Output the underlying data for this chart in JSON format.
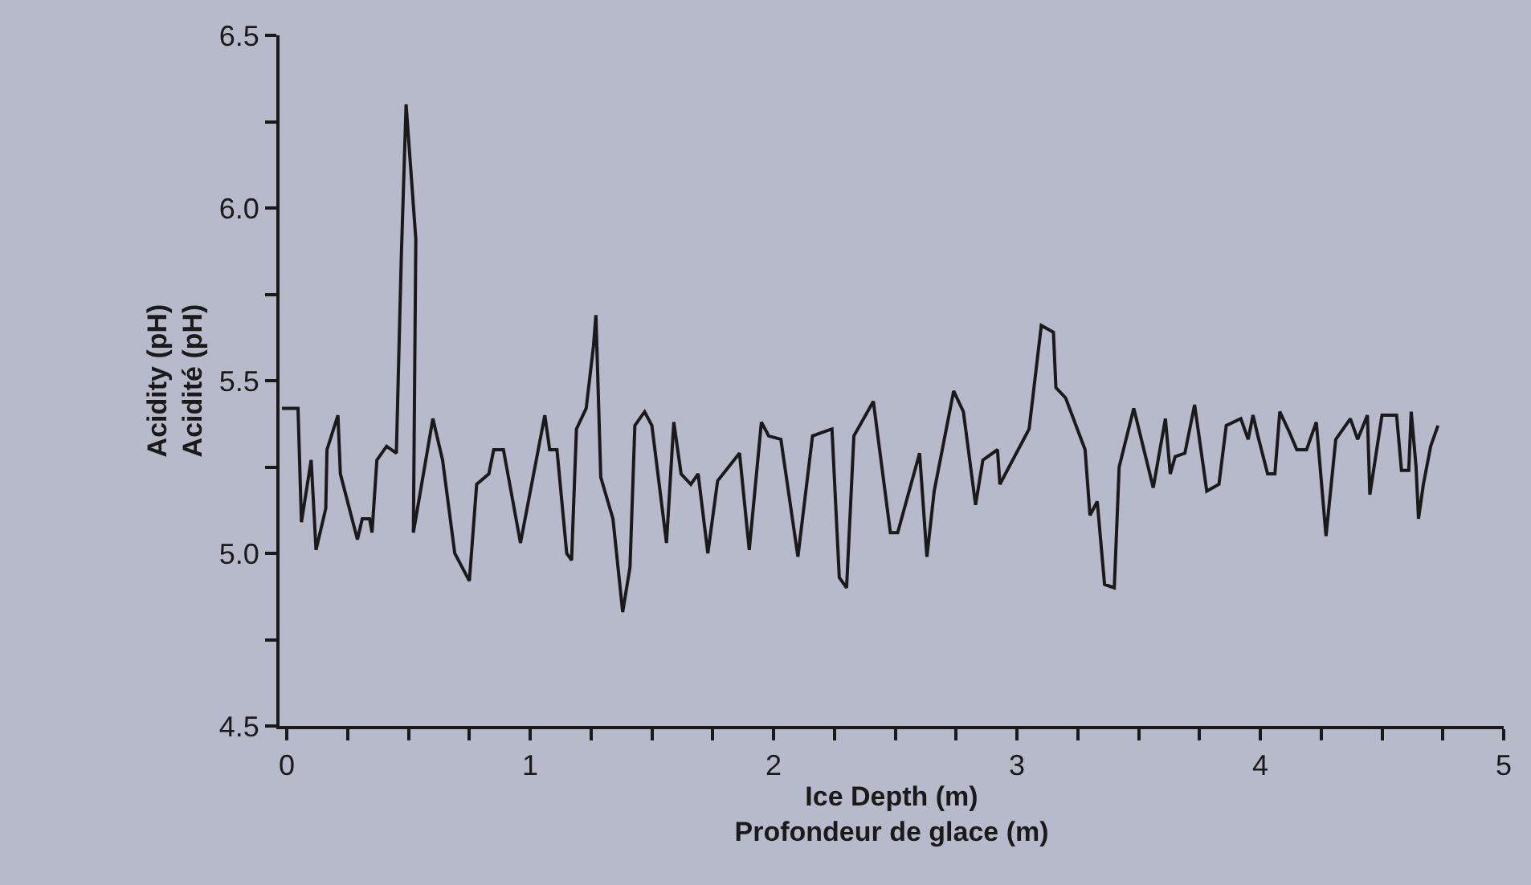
{
  "chart_data": {
    "type": "line",
    "xlabel": "Ice Depth (m)\nProfondeur de glace (m)",
    "ylabel": "Acidity (pH)\nAcidité (pH)",
    "xlim": [
      -0.03,
      5
    ],
    "ylim": [
      4.5,
      6.5
    ],
    "xticks": [
      0,
      {
        "value": 0.25,
        "label": null
      },
      {
        "value": 0.5,
        "label": null
      },
      {
        "value": 0.75,
        "label": null
      },
      1,
      {
        "value": 1.25,
        "label": null
      },
      {
        "value": 1.5,
        "label": null
      },
      {
        "value": 1.75,
        "label": null
      },
      2,
      {
        "value": 2.25,
        "label": null
      },
      {
        "value": 2.5,
        "label": null
      },
      {
        "value": 2.75,
        "label": null
      },
      3,
      {
        "value": 3.25,
        "label": null
      },
      {
        "value": 3.5,
        "label": null
      },
      {
        "value": 3.75,
        "label": null
      },
      4,
      {
        "value": 4.25,
        "label": null
      },
      {
        "value": 4.5,
        "label": null
      },
      {
        "value": 4.75,
        "label": null
      },
      5
    ],
    "yticks": [
      4.5,
      {
        "value": 4.75,
        "label": null
      },
      {
        "value": 5,
        "label": "5.0"
      },
      {
        "value": 5.25,
        "label": null
      },
      5.5,
      {
        "value": 5.75,
        "label": null
      },
      {
        "value": 6,
        "label": "6.0"
      },
      {
        "value": 6.25,
        "label": null
      },
      6.5
    ],
    "grid": false,
    "marker": "none",
    "line_style": "solid",
    "series": [
      {
        "color": "#1a1a1a",
        "x": [
          -0.02,
          0.046,
          0.06,
          0.1,
          0.12,
          0.16,
          0.165,
          0.21,
          0.22,
          0.29,
          0.31,
          0.34,
          0.35,
          0.37,
          0.41,
          0.45,
          0.47,
          0.49,
          0.53,
          0.52,
          0.6,
          0.64,
          0.69,
          0.75,
          0.78,
          0.83,
          0.85,
          0.89,
          0.96,
          1.06,
          1.08,
          1.11,
          1.15,
          1.17,
          1.19,
          1.23,
          1.26,
          1.27,
          1.29,
          1.34,
          1.38,
          1.41,
          1.43,
          1.47,
          1.5,
          1.56,
          1.59,
          1.62,
          1.66,
          1.69,
          1.73,
          1.77,
          1.86,
          1.9,
          1.95,
          1.98,
          2.03,
          2.1,
          2.16,
          2.24,
          2.27,
          2.3,
          2.33,
          2.41,
          2.48,
          2.51,
          2.6,
          2.63,
          2.66,
          2.74,
          2.78,
          2.83,
          2.86,
          2.92,
          2.93,
          3.05,
          3.1,
          3.15,
          3.16,
          3.2,
          3.28,
          3.3,
          3.33,
          3.36,
          3.4,
          3.42,
          3.48,
          3.56,
          3.61,
          3.63,
          3.65,
          3.69,
          3.73,
          3.78,
          3.83,
          3.86,
          3.92,
          3.95,
          3.97,
          3.99,
          4.03,
          4.06,
          4.08,
          4.12,
          4.15,
          4.19,
          4.23,
          4.27,
          4.31,
          4.37,
          4.4,
          4.44,
          4.45,
          4.5,
          4.56,
          4.58,
          4.61,
          4.62,
          4.64,
          4.65,
          4.67,
          4.7,
          4.73
        ],
        "values": [
          5.42,
          5.42,
          5.09,
          5.27,
          5.01,
          5.13,
          5.3,
          5.4,
          5.23,
          5.04,
          5.1,
          5.1,
          5.06,
          5.27,
          5.31,
          5.29,
          5.85,
          6.3,
          5.91,
          5.06,
          5.39,
          5.27,
          5.0,
          4.92,
          5.2,
          5.23,
          5.3,
          5.3,
          5.03,
          5.4,
          5.3,
          5.3,
          5.0,
          4.98,
          5.36,
          5.42,
          5.6,
          5.69,
          5.22,
          5.1,
          4.83,
          4.96,
          5.37,
          5.41,
          5.37,
          5.03,
          5.38,
          5.23,
          5.2,
          5.23,
          5.0,
          5.21,
          5.29,
          5.01,
          5.38,
          5.34,
          5.33,
          4.99,
          5.34,
          5.36,
          4.93,
          4.9,
          5.34,
          5.44,
          5.06,
          5.06,
          5.29,
          4.99,
          5.18,
          5.47,
          5.41,
          5.14,
          5.27,
          5.3,
          5.2,
          5.36,
          5.66,
          5.64,
          5.48,
          5.45,
          5.3,
          5.11,
          5.15,
          4.91,
          4.9,
          5.25,
          5.42,
          5.19,
          5.39,
          5.23,
          5.28,
          5.29,
          5.43,
          5.18,
          5.2,
          5.37,
          5.39,
          5.33,
          5.4,
          5.34,
          5.23,
          5.23,
          5.41,
          5.35,
          5.3,
          5.3,
          5.38,
          5.05,
          5.33,
          5.39,
          5.33,
          5.4,
          5.17,
          5.4,
          5.4,
          5.24,
          5.24,
          5.41,
          5.25,
          5.1,
          5.2,
          5.31,
          5.37
        ]
      }
    ]
  }
}
